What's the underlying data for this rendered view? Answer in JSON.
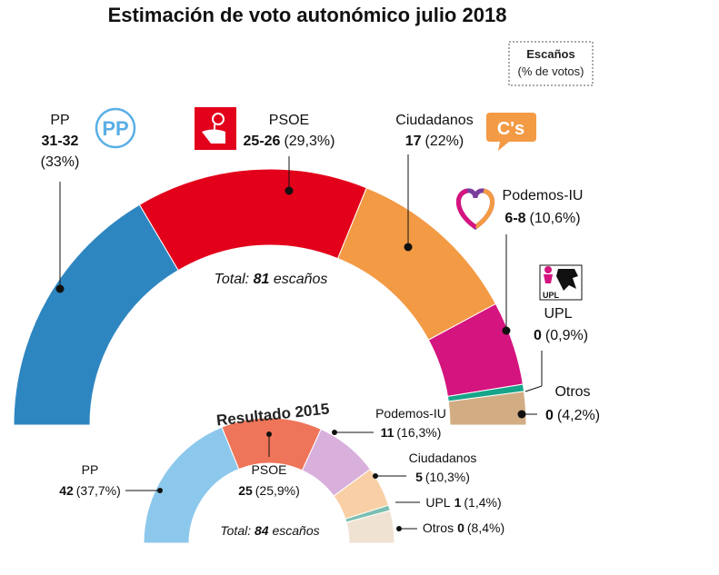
{
  "chart_data": [
    {
      "type": "pie",
      "style": "semicircle-donut",
      "title": "Estimación de voto autonómico julio 2018",
      "center_label": {
        "prefix": "Total:",
        "value": "81",
        "suffix": "escaños"
      },
      "slices": [
        {
          "party": "PP",
          "seats": "31-32",
          "pct": "(33%)",
          "pct_value": 33,
          "color": "#2E86C1"
        },
        {
          "party": "PSOE",
          "seats": "25-26",
          "pct": "(29,3%)",
          "pct_value": 29.3,
          "color": "#E2001A"
        },
        {
          "party": "Ciudadanos",
          "seats": "17",
          "pct": "(22%)",
          "pct_value": 22,
          "color": "#F39A45"
        },
        {
          "party": "Podemos-IU",
          "seats": "6-8",
          "pct": "(10,6%)",
          "pct_value": 10.6,
          "color": "#D4147F"
        },
        {
          "party": "UPL",
          "seats": "0",
          "pct": "(0,9%)",
          "pct_value": 0.9,
          "color": "#17A589"
        },
        {
          "party": "Otros",
          "seats": "0",
          "pct": "(4,2%)",
          "pct_value": 4.2,
          "color": "#D2AD84"
        }
      ]
    },
    {
      "type": "pie",
      "style": "semicircle-donut",
      "title": "Resultado 2015",
      "center_label": {
        "prefix": "Total:",
        "value": "84",
        "suffix": "escaños"
      },
      "slices": [
        {
          "party": "PP",
          "seats": "42",
          "pct": "(37,7%)",
          "pct_value": 37.7,
          "color": "#8CC8EC"
        },
        {
          "party": "PSOE",
          "seats": "25",
          "pct": "(25,9%)",
          "pct_value": 25.9,
          "color": "#EE7559"
        },
        {
          "party": "Podemos-IU",
          "seats": "11",
          "pct": "(16,3%)",
          "pct_value": 16.3,
          "color": "#D8B0DB"
        },
        {
          "party": "Ciudadanos",
          "seats": "5",
          "pct": "(10,3%)",
          "pct_value": 10.3,
          "color": "#F9D0A6"
        },
        {
          "party": "UPL",
          "seats": "1",
          "pct": "(1,4%)",
          "pct_value": 1.4,
          "color": "#7BBFB0"
        },
        {
          "party": "Otros",
          "seats": "0",
          "pct": "(8,4%)",
          "pct_value": 8.4,
          "color": "#F0E2D2"
        }
      ]
    }
  ],
  "legend": {
    "line1": "Escaños",
    "line2": "(% de votos)"
  },
  "logos": {
    "pp": {
      "name": "pp-logo-icon",
      "text": "PP",
      "color": "#5AAFE6"
    },
    "psoe": {
      "name": "psoe-rose-icon",
      "color": "#E2001A"
    },
    "cs": {
      "name": "ciudadanos-logo-icon",
      "text": "C's",
      "color": "#F39A45"
    },
    "podemos": {
      "name": "podemos-heart-icon",
      "colors": [
        "#D4147F",
        "#7A3E9D",
        "#F39A45"
      ]
    },
    "upl": {
      "name": "upl-lion-icon",
      "text": "UPL",
      "colors": [
        "#D4147F",
        "#111111"
      ]
    }
  }
}
